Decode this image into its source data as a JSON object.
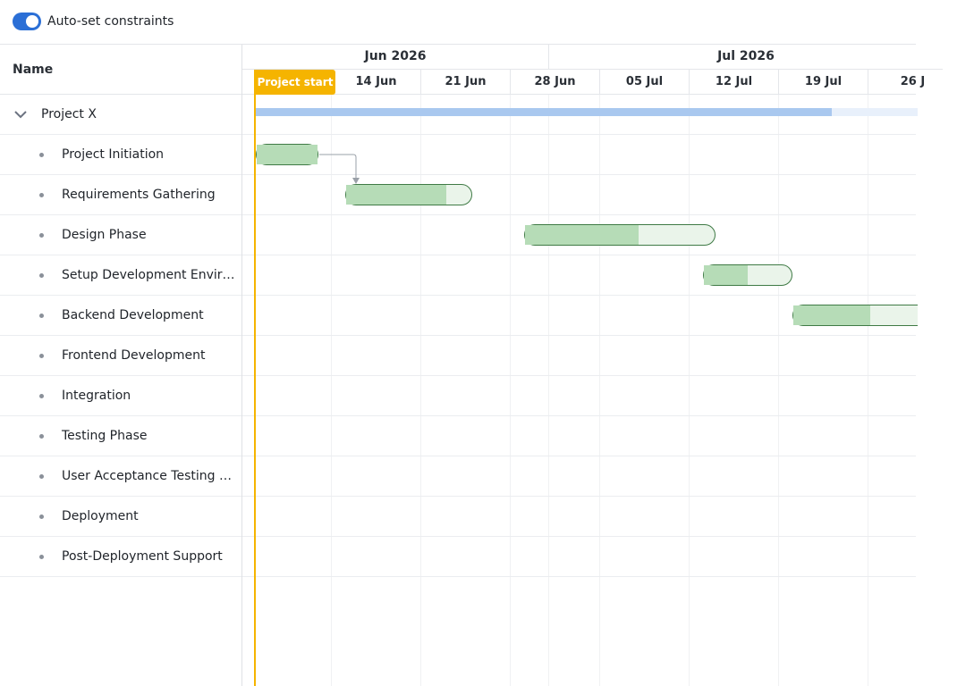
{
  "toolbar": {
    "auto_constraints_label": "Auto-set constraints",
    "auto_constraints_on": true
  },
  "grid": {
    "name_header": "Name"
  },
  "tasks": [
    {
      "name": "Project X",
      "type": "parent",
      "expanded": true
    },
    {
      "name": "Project Initiation",
      "type": "child"
    },
    {
      "name": "Requirements Gathering",
      "type": "child"
    },
    {
      "name": "Design Phase",
      "type": "child"
    },
    {
      "name": "Setup Development Envir…",
      "type": "child"
    },
    {
      "name": "Backend Development",
      "type": "child"
    },
    {
      "name": "Frontend Development",
      "type": "child"
    },
    {
      "name": "Integration",
      "type": "child"
    },
    {
      "name": "Testing Phase",
      "type": "child"
    },
    {
      "name": "User Acceptance Testing …",
      "type": "child"
    },
    {
      "name": "Deployment",
      "type": "child"
    },
    {
      "name": "Post-Deployment Support",
      "type": "child"
    }
  ],
  "timeline": {
    "months": [
      "Jun 2026",
      "Jul 2026"
    ],
    "weeks": [
      "14 Jun",
      "21 Jun",
      "28 Jun",
      "05 Jul",
      "12 Jul",
      "19 Jul",
      "26 J"
    ],
    "marker_label": "Project start",
    "marker_color": "#f5b400"
  },
  "bar_colors": {
    "fill": "#b6dcb7",
    "remaining": "#eaf4ea",
    "border": "#3f7a45",
    "summary": "#a9c8ef"
  },
  "progress": {
    "project_x": 0.87,
    "requirements_gathering": 0.8,
    "design_phase": 0.6,
    "setup_development_environment": 0.5,
    "backend_development": 0.62
  }
}
